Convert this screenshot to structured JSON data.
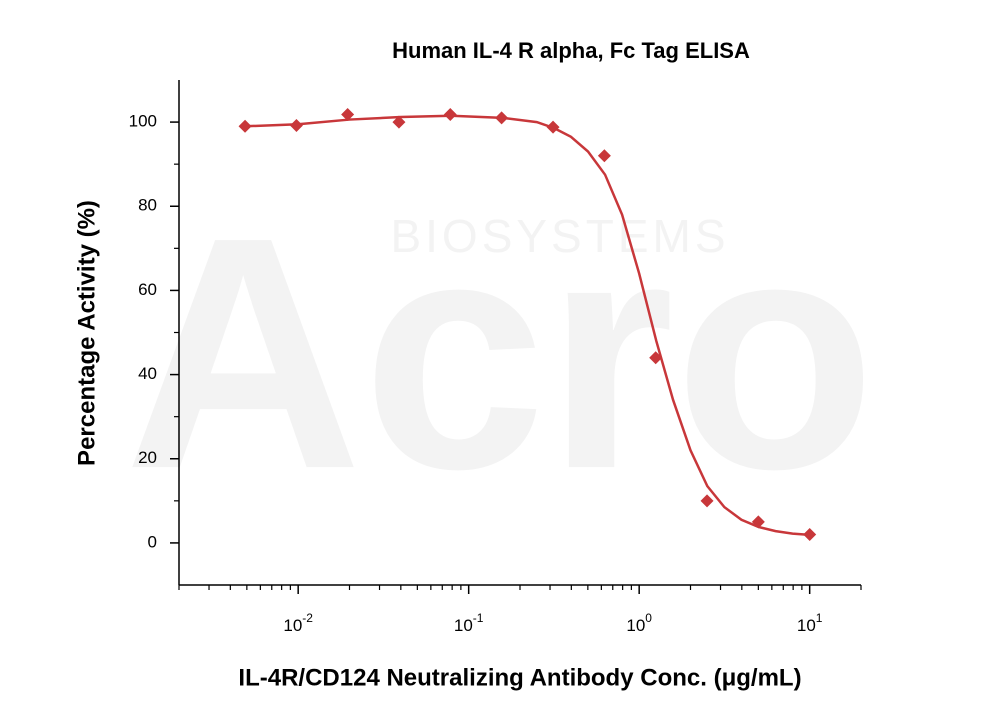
{
  "chart_data": {
    "type": "scatter",
    "title": "Human IL-4 R alpha, Fc Tag ELISA",
    "x_label": "IL-4R/CD124 Neutralizing Antibody Conc. (μg/mL)",
    "y_label": "Percentage Activity (%)",
    "watermark": [
      "Acro",
      "BIOSYSTEMS"
    ],
    "xscale": "log",
    "xlim": [
      0.002,
      20
    ],
    "ylim": [
      -10,
      110
    ],
    "xticks": [
      {
        "value": 0.01,
        "label": "10",
        "exponent": "-2"
      },
      {
        "value": 0.1,
        "label": "10",
        "exponent": "-1"
      },
      {
        "value": 1,
        "label": "10",
        "exponent": "0"
      },
      {
        "value": 10,
        "label": "10",
        "exponent": "1"
      }
    ],
    "yticks": [
      0,
      20,
      40,
      60,
      80,
      100
    ],
    "yminorticks": [
      10,
      30,
      50,
      70,
      90
    ],
    "xminorticks": true,
    "color": "#c8373a",
    "points": {
      "x": [
        0.00488,
        0.00977,
        0.0195,
        0.039,
        0.078,
        0.156,
        0.3125,
        0.625,
        1.25,
        2.5,
        5,
        10
      ],
      "values": [
        99,
        99.2,
        101.8,
        100,
        101.8,
        101,
        98.8,
        92,
        44,
        10,
        5,
        2
      ]
    },
    "fit": {
      "x": [
        0.0049,
        0.01,
        0.02,
        0.04,
        0.079,
        0.158,
        0.251,
        0.316,
        0.398,
        0.501,
        0.631,
        0.794,
        1,
        1.26,
        1.58,
        2,
        2.51,
        3.16,
        3.98,
        5.01,
        6.31,
        7.94,
        10
      ],
      "values": [
        99,
        99.5,
        100.6,
        101.2,
        101.5,
        101,
        100,
        98.6,
        96.5,
        93,
        87.5,
        78,
        64,
        48,
        34,
        22,
        13.5,
        8.5,
        5.5,
        3.8,
        2.8,
        2.2,
        1.9
      ]
    }
  }
}
